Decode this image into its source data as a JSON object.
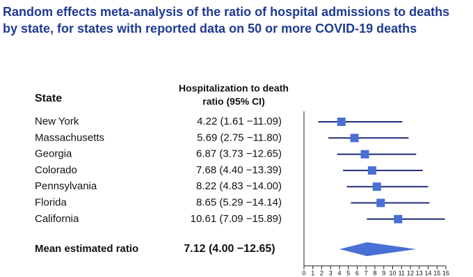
{
  "chart_data": {
    "type": "forest",
    "title": [
      "Random effects meta-analysis of the ratio of hospital admissions to deaths",
      "by state, for states with reported data on 50 or more COVID-19 deaths"
    ],
    "column_headers": {
      "label": "State",
      "estimate": [
        "Hospitalization to death",
        "ratio (95% CI)"
      ]
    },
    "categories": [
      "New York",
      "Massachusetts",
      "Georgia",
      "Colorado",
      "Pennsylvania",
      "Florida",
      "California"
    ],
    "estimates": [
      4.22,
      5.69,
      6.87,
      7.68,
      8.22,
      8.65,
      10.61
    ],
    "lower": [
      1.61,
      2.75,
      3.73,
      4.4,
      4.83,
      5.29,
      7.09
    ],
    "upper": [
      11.09,
      11.8,
      12.65,
      13.39,
      14.0,
      14.14,
      15.89
    ],
    "value_labels": [
      "4.22 (1.61 −11.09)",
      "5.69 (2.75 −11.80)",
      "6.87 (3.73 −12.65)",
      "7.68 (4.40 −13.39)",
      "8.22 (4.83 −14.00)",
      "8.65 (5.29 −14.14)",
      "10.61 (7.09 −15.89)"
    ],
    "summary": {
      "name": "Mean estimated ratio",
      "estimate": 7.12,
      "lower": 4.0,
      "upper": 12.65,
      "value_label": "7.12 (4.00 −12.65)"
    },
    "xlim": [
      0,
      16
    ],
    "xticks": [
      0,
      1,
      2,
      3,
      4,
      5,
      6,
      7,
      8,
      9,
      10,
      11,
      12,
      13,
      14,
      15,
      16
    ],
    "marker_color": "#4a6fd6",
    "line_color": "#1f2a7a",
    "diamond_color": "#4a6fd6",
    "title_color": "#1f3a93"
  }
}
